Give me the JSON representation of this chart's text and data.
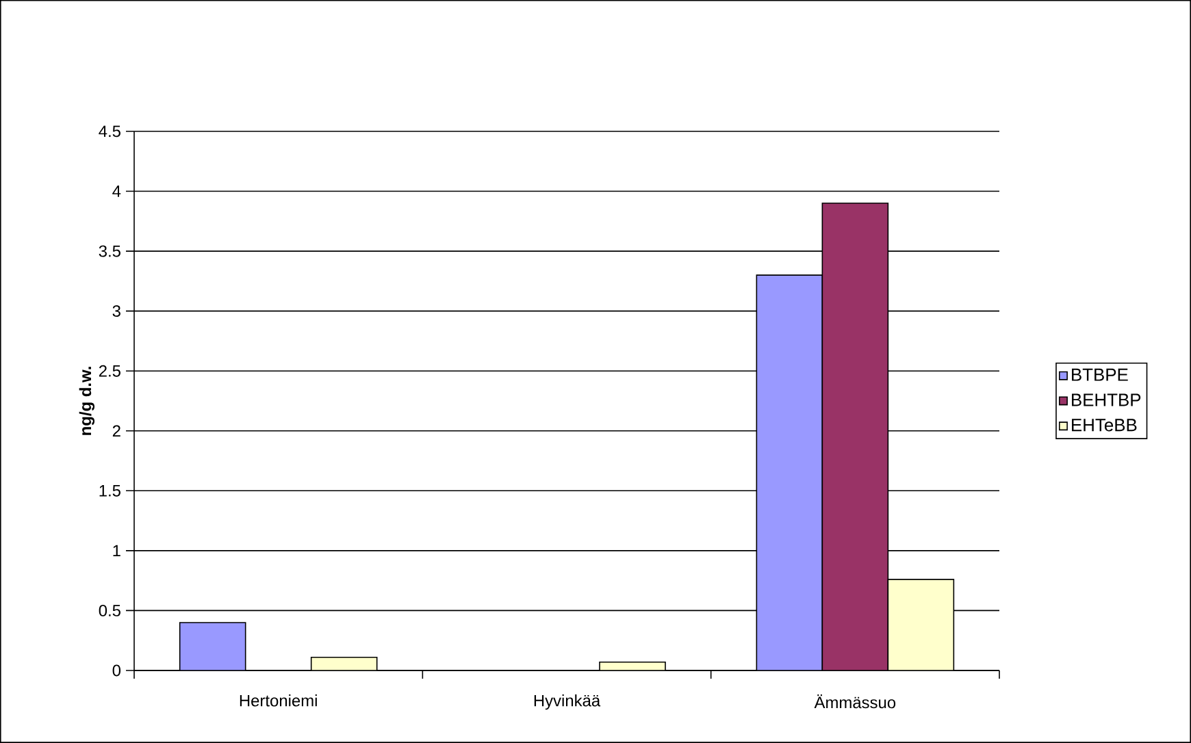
{
  "chart_data": {
    "type": "bar",
    "ylabel": "ng/g d.w.",
    "categories": [
      "Hertoniemi",
      "Hyvinkää",
      "Ämmässuo"
    ],
    "series": [
      {
        "name": "BTBPE",
        "color": "#9999ff",
        "values": [
          0.4,
          null,
          3.3
        ]
      },
      {
        "name": "BEHTBP",
        "color": "#993366",
        "values": [
          null,
          null,
          3.9
        ]
      },
      {
        "name": "EHTeBB",
        "color": "#ffffcc",
        "values": [
          0.11,
          0.07,
          0.76
        ]
      }
    ],
    "ylim": [
      0,
      4.5
    ],
    "yticks": [
      0,
      0.5,
      1,
      1.5,
      2,
      2.5,
      3,
      3.5,
      4,
      4.5
    ],
    "grid": "y",
    "legend": "right"
  }
}
